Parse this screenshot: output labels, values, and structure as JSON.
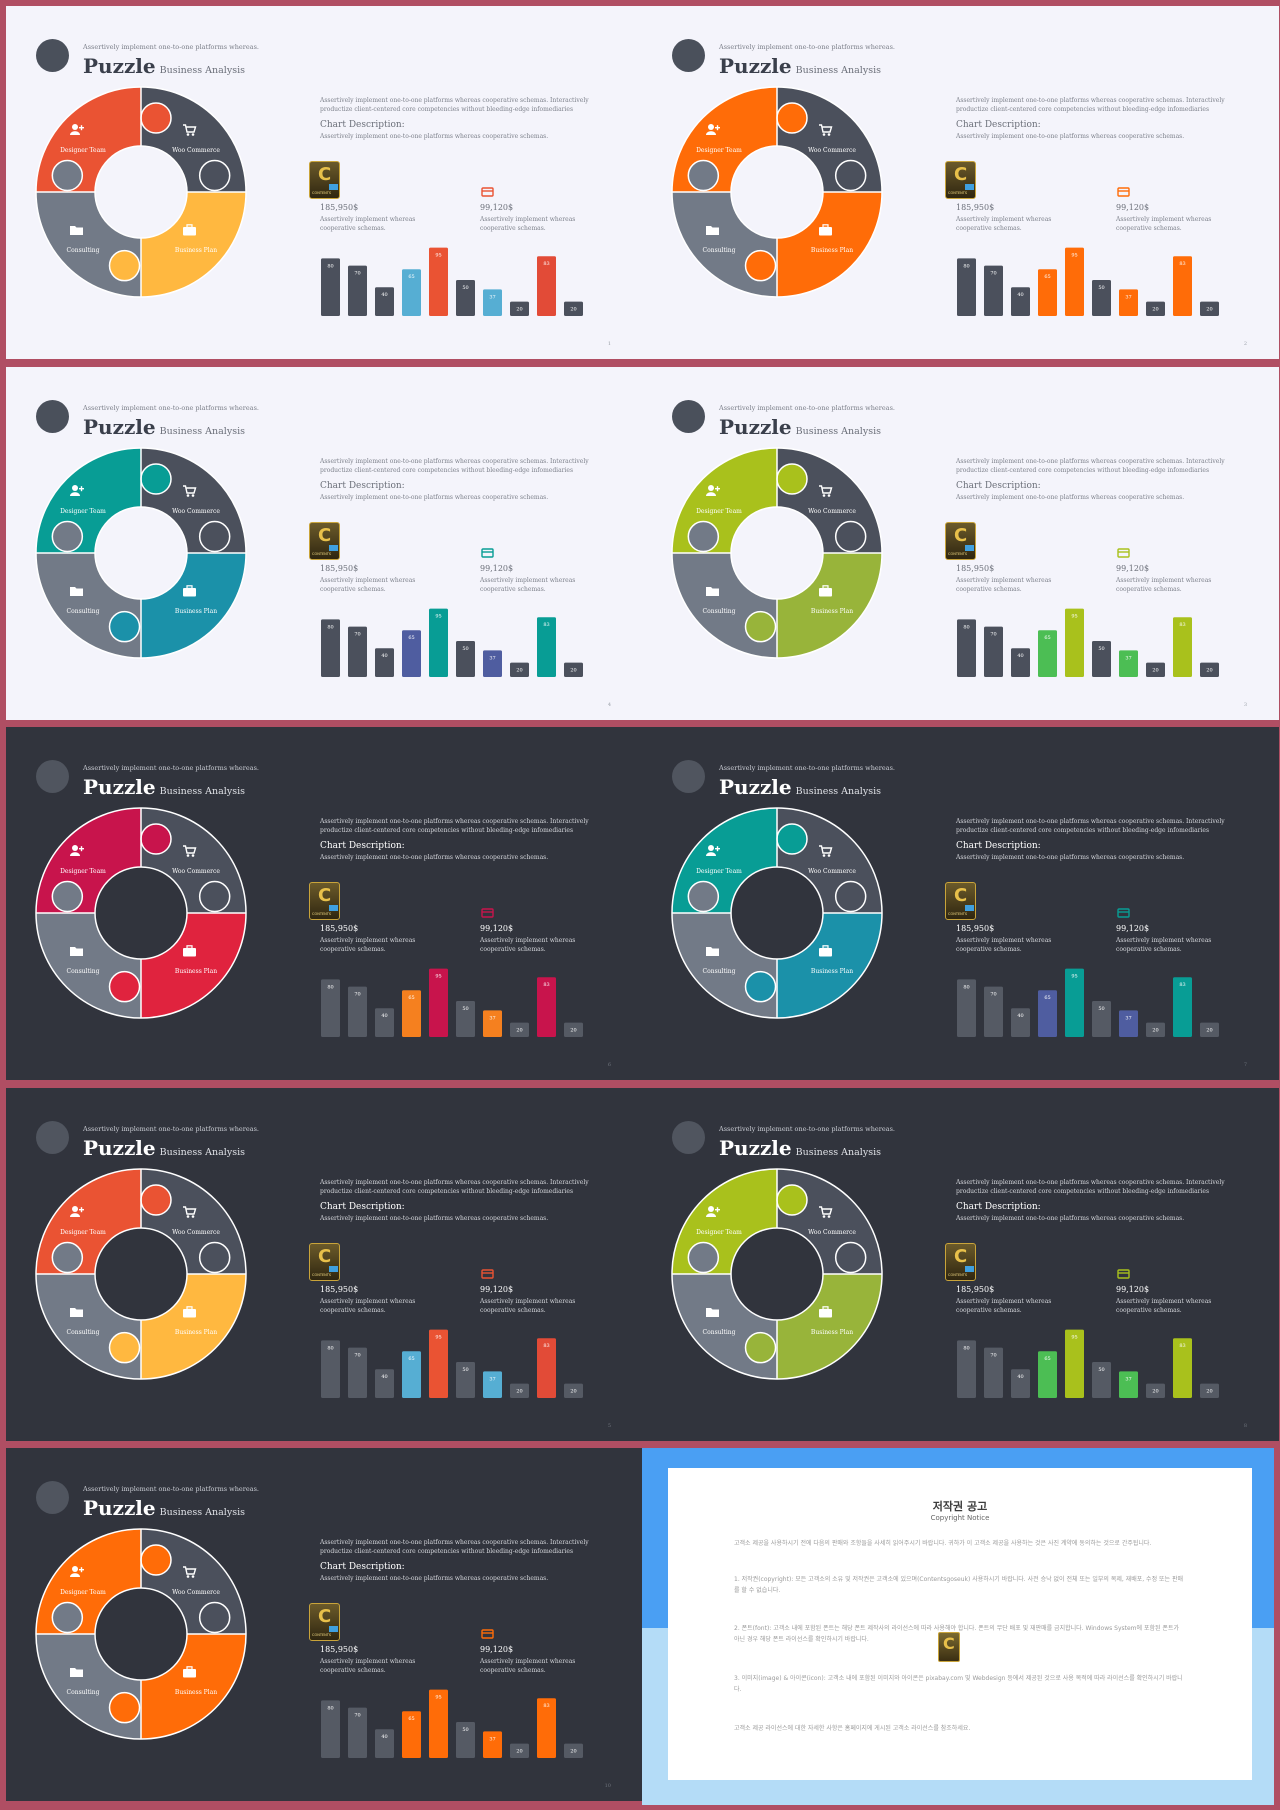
{
  "slides": [
    {
      "theme": "light",
      "page": "1",
      "colors": {
        "p1": "#ea5333",
        "p2": "#4b505c",
        "p3": "#727a87",
        "p4": "#ffb840",
        "bar_hi": "#ea5333",
        "bar_alt": "#56aed3",
        "bar_hi2": "#e24b37"
      }
    },
    {
      "theme": "light",
      "page": "2",
      "colors": {
        "p1": "#ff6c08",
        "p2": "#4b505c",
        "p3": "#727a87",
        "p4": "#ff6c08",
        "bar_hi": "#ff6c08",
        "bar_alt": "#ff6c08",
        "bar_hi2": "#ff6c08"
      }
    },
    {
      "theme": "light",
      "page": "4",
      "colors": {
        "p1": "#089d95",
        "p2": "#4b505c",
        "p3": "#727a87",
        "p4": "#1b91a9",
        "bar_hi": "#089d95",
        "bar_alt": "#4f5da0",
        "bar_hi2": "#089d95"
      }
    },
    {
      "theme": "light",
      "page": "3",
      "colors": {
        "p1": "#a9c11c",
        "p2": "#4b505c",
        "p3": "#727a87",
        "p4": "#98b43a",
        "bar_hi": "#a9c11c",
        "bar_alt": "#4cbe54",
        "bar_hi2": "#a9c11c"
      }
    },
    {
      "theme": "dark",
      "page": "6",
      "colors": {
        "p1": "#c8144c",
        "p2": "#4b505c",
        "p3": "#727a87",
        "p4": "#e0233e",
        "bar_hi": "#c8144c",
        "bar_alt": "#f5801f",
        "bar_hi2": "#c8144c"
      }
    },
    {
      "theme": "dark",
      "page": "7",
      "colors": {
        "p1": "#089d95",
        "p2": "#4b505c",
        "p3": "#727a87",
        "p4": "#1b91a9",
        "bar_hi": "#089d95",
        "bar_alt": "#4f5da0",
        "bar_hi2": "#089d95"
      }
    },
    {
      "theme": "dark",
      "page": "5",
      "colors": {
        "p1": "#ea5333",
        "p2": "#4b505c",
        "p3": "#727a87",
        "p4": "#ffb840",
        "bar_hi": "#ea5333",
        "bar_alt": "#56aed3",
        "bar_hi2": "#e24b37"
      }
    },
    {
      "theme": "dark",
      "page": "8",
      "colors": {
        "p1": "#a9c11c",
        "p2": "#4b505c",
        "p3": "#727a87",
        "p4": "#98b43a",
        "bar_hi": "#a9c11c",
        "bar_alt": "#4cbe54",
        "bar_hi2": "#a9c11c"
      }
    },
    {
      "theme": "dark",
      "page": "10",
      "colors": {
        "p1": "#ff6c08",
        "p2": "#4b505c",
        "p3": "#727a87",
        "p4": "#ff6c08",
        "bar_hi": "#ff6c08",
        "bar_alt": "#ff6c08",
        "bar_hi2": "#ff6c08"
      }
    }
  ],
  "common": {
    "subtitle": "Assertively implement one-to-one platforms whereas.",
    "title": "Puzzle",
    "title_small": "Business Analysis",
    "description": "Assertively implement one-to-one platforms whereas cooperative schemas. Interactively productize client-centered core competencies without bleeding-edge infomediaries",
    "chart_desc_title": "Chart Description:",
    "chart_desc": "Assertively implement one-to-one platforms whereas cooperative schemas.",
    "stat1_value": "185,950$",
    "stat2_value": "99,120$",
    "stat_desc": "Assertively implement whereas cooperative schemas.",
    "logo_letter": "C",
    "logo_text": "CONTENTS",
    "segments": [
      "Designer Team",
      "Woo Commerce",
      "Consulting",
      "Business Plan"
    ],
    "icons": [
      "user-plus-icon",
      "cart-icon",
      "folder-icon",
      "briefcase-icon",
      "card-icon"
    ]
  },
  "chart_data": {
    "type": "bar",
    "values": [
      80,
      70,
      40,
      65,
      95,
      50,
      37,
      20,
      83,
      20
    ],
    "labels": [
      "80",
      "70",
      "40",
      "65",
      "95",
      "50",
      "37",
      "20",
      "83",
      "20"
    ]
  },
  "notice": {
    "title": "저작권 공고",
    "subtitle": "Copyright Notice",
    "intro": "고객소 제공을 사용하시기 전에 다음의 판매와 조항들을 사세히 읽어주시기 바랍니다. 귀하가 이 고객소 제공을 사용하는 것은 사진 계약에 동의하는 것으로 간주됩니다.",
    "p1": "1. 저작권(copyright): 모든 고객소의 소유 및 저작권은 고객소에 있으며(Contentsgoseuk) 사용하시기 바랍니다. 사전 승낙 없이 전체 또는 일부의 복제, 재배포, 수정 또는 판매를 할 수 없습니다.",
    "p2": "2. 폰트(font): 고객소 내에 포함된 폰트는 해당 폰트 제작사의 라이선스에 따라 사용해야 합니다. 폰트의 무단 배포 및 재판매를 금지합니다. Windows System에 포함된 폰트가 아닌 경우 해당 폰트 라이선스를 확인하시기 바랍니다.",
    "p3": "3. 이미지(image) & 아이콘(icon): 고객소 내에 포함된 이미지와 아이콘은 pixabay.com 및 Webdesign 등에서 제공된 것으로 사용 목적에 따라 라이선스를 확인하시기 바랍니다.",
    "outro": "고객소 제공 라이선스에 대한 자세한 사항은 홈페이지에 게시된 고객소 라이선스를 참조하세요."
  }
}
